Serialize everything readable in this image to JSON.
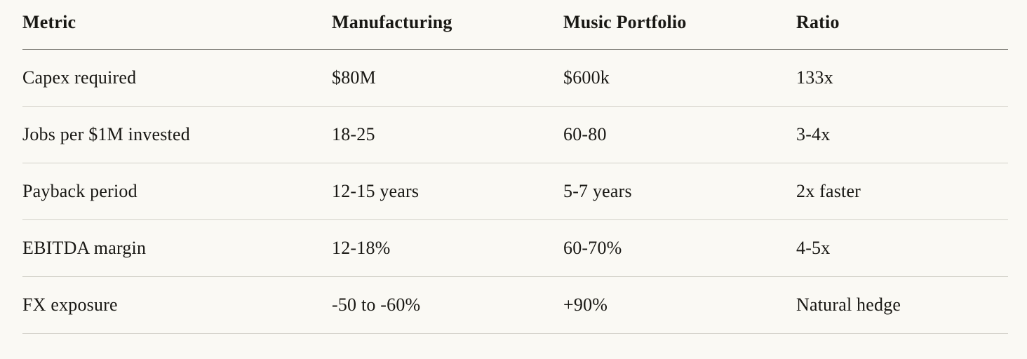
{
  "colors": {
    "background": "#FAF9F4",
    "text": "#191814",
    "header_rule": "#81807A",
    "row_rule": "#D2D0C8"
  },
  "table": {
    "columns": [
      "Metric",
      "Manufacturing",
      "Music Portfolio",
      "Ratio"
    ],
    "rows": [
      [
        "Capex required",
        "$80M",
        "$600k",
        "133x"
      ],
      [
        "Jobs per $1M invested",
        "18-25",
        "60-80",
        "3-4x"
      ],
      [
        "Payback period",
        "12-15 years",
        "5-7 years",
        "2x faster"
      ],
      [
        "EBITDA margin",
        "12-18%",
        "60-70%",
        "4-5x"
      ],
      [
        "FX exposure",
        "-50 to -60%",
        "+90%",
        "Natural hedge"
      ]
    ]
  }
}
